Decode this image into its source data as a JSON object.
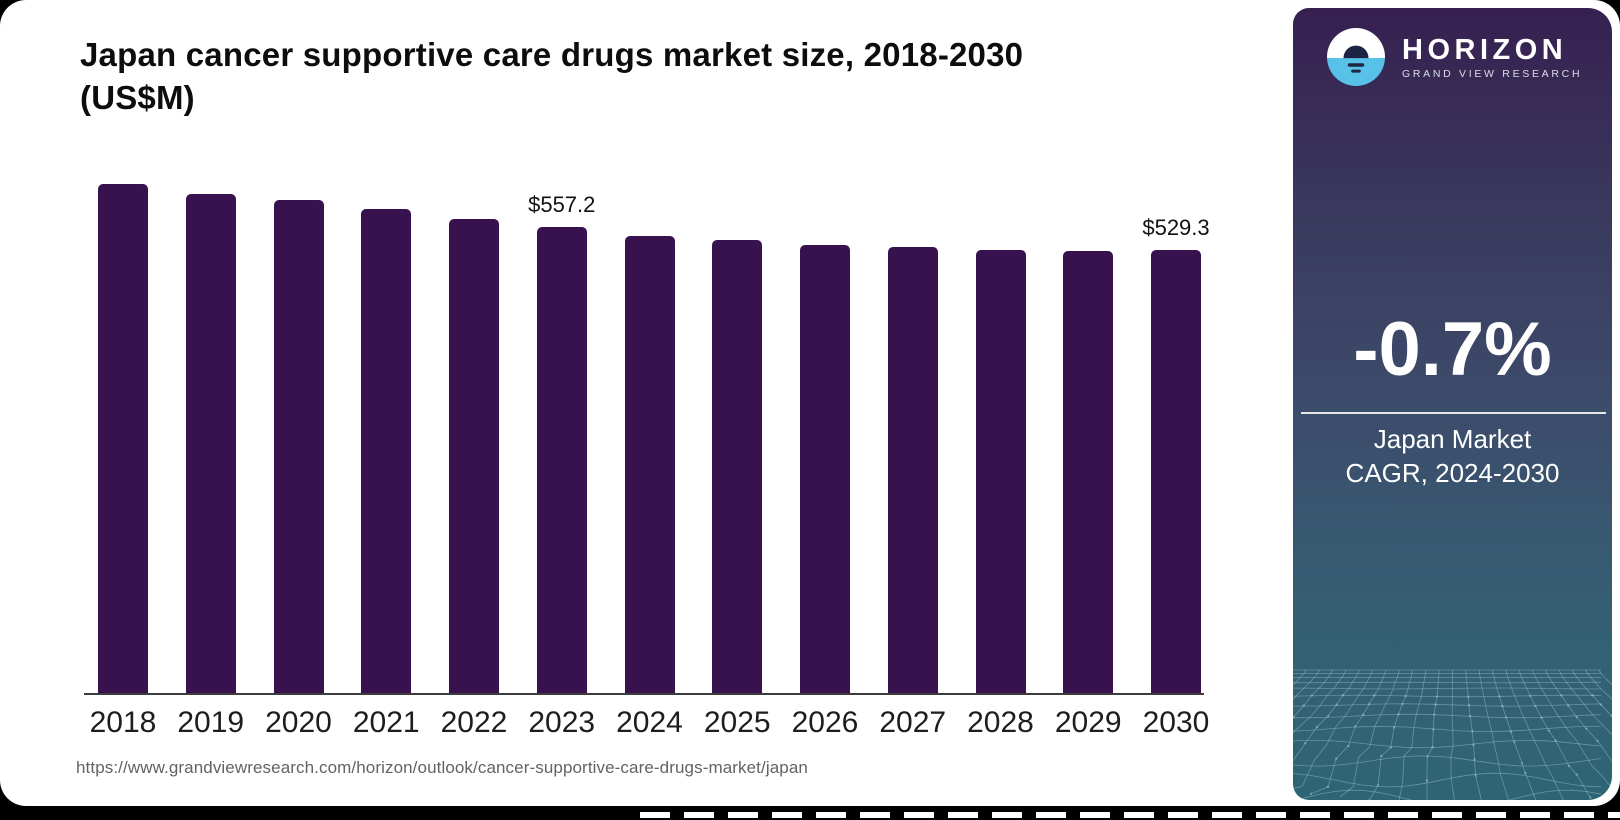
{
  "title": {
    "line1": "Japan cancer supportive care drugs market size, 2018-2030",
    "line2": "(US$M)"
  },
  "footer": {
    "source_url": "https://www.grandviewresearch.com/horizon/outlook/cancer-supportive-care-drugs-market/japan"
  },
  "side_panel": {
    "brand_name": "HORIZON",
    "brand_tagline": "GRAND VIEW RESEARCH",
    "cagr_value": "-0.7%",
    "cagr_line1": "Japan Market",
    "cagr_line2": "CAGR, 2024-2030",
    "gradient_top_color": "#362050",
    "gradient_mid_color": "#3D4A6A",
    "gradient_bottom_color": "#2E6574",
    "logo_water_color": "#58C1E8",
    "logo_sun_color": "#1C2644"
  },
  "chart_data": {
    "type": "bar",
    "title": "Japan cancer supportive care drugs market size, 2018-2030 (US$M)",
    "unit": "US$M",
    "xlabel": "",
    "ylabel": "",
    "categories": [
      "2018",
      "2019",
      "2020",
      "2021",
      "2022",
      "2023",
      "2024",
      "2025",
      "2026",
      "2027",
      "2028",
      "2029",
      "2030"
    ],
    "values": [
      608.4,
      596.5,
      589.3,
      578.6,
      566.7,
      557.2,
      546.5,
      541.7,
      535.8,
      533.4,
      529.8,
      528.6,
      529.3
    ],
    "value_labels": [
      {
        "category": "2023",
        "text": "$557.2"
      },
      {
        "category": "2030",
        "text": "$529.3"
      }
    ],
    "ylim": [
      0,
      650
    ],
    "bar_color": "#38124E",
    "axis_color": "#3d3d3d",
    "gridlines": false,
    "legend": false
  }
}
